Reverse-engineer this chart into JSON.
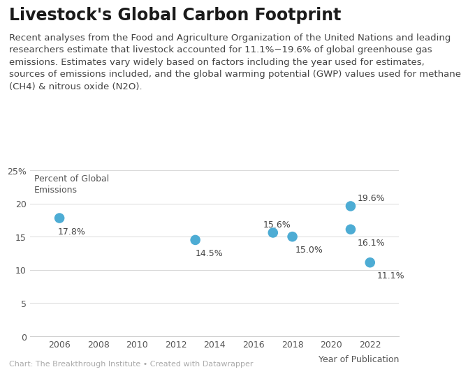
{
  "title": "Livestock's Global Carbon Footprint",
  "subtitle": "Recent analyses from the Food and Agriculture Organization of the United Nations and leading\nresearchers estimate that livestock accounted for 11.1%−19.6% of global greenhouse gas\nemissions. Estimates vary widely based on factors including the year used for estimates,\nsources of emissions included, and the global warming potential (GWP) values used for methane\n(CH4) & nitrous oxide (N2O).",
  "xlabel": "Year of Publication",
  "ylabel": "Percent of Global\nEmissions",
  "caption": "Chart: The Breakthrough Institute • Created with Datawrapper",
  "years": [
    2006,
    2013,
    2017,
    2018,
    2021,
    2021,
    2022
  ],
  "values": [
    17.8,
    14.5,
    15.6,
    15.0,
    19.6,
    16.1,
    11.1
  ],
  "labels": [
    "17.8%",
    "14.5%",
    "15.6%",
    "15.0%",
    "19.6%",
    "16.1%",
    "11.1%"
  ],
  "label_offsets_x": [
    -0.1,
    0.0,
    -0.5,
    0.15,
    0.35,
    0.35,
    0.35
  ],
  "label_offsets_y": [
    -1.3,
    -1.3,
    0.6,
    -1.3,
    0.6,
    -1.3,
    -1.3
  ],
  "dot_color": "#4dacd4",
  "dot_size": 110,
  "bg_color": "#ffffff",
  "grid_color": "#d8d8d8",
  "title_fontsize": 17,
  "subtitle_fontsize": 9.5,
  "axis_label_fontsize": 9,
  "tick_fontsize": 9,
  "annotation_fontsize": 9,
  "caption_fontsize": 8,
  "xlim": [
    2004.5,
    2023.5
  ],
  "ylim": [
    0,
    25
  ],
  "yticks": [
    0,
    5,
    10,
    15,
    20,
    25
  ],
  "ytick_labels": [
    "0",
    "5",
    "10",
    "15",
    "20",
    "25%"
  ],
  "xticks": [
    2006,
    2008,
    2010,
    2012,
    2014,
    2016,
    2018,
    2020,
    2022
  ]
}
